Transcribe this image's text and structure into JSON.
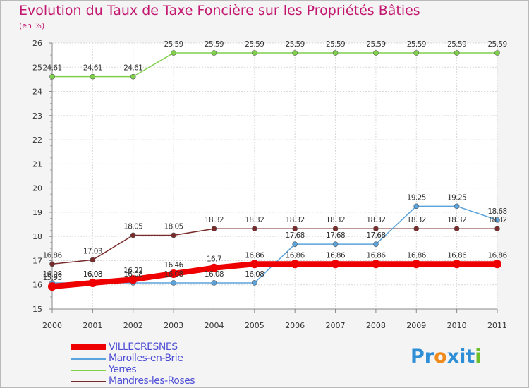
{
  "title": "Evolution du Taux de Taxe Foncière sur les Propriétés Bâties",
  "unit_label": "(en %)",
  "logo": {
    "letters": [
      "P",
      "r",
      "o",
      "x",
      "i",
      "t",
      "i"
    ],
    "colors": [
      "#2f8fd6",
      "#2f8fd6",
      "#ef8a1d",
      "#2f8fd6",
      "#2f8fd6",
      "#2f8fd6",
      "#6fbf2a"
    ]
  },
  "chart_data": {
    "type": "line",
    "title": "Evolution du Taux de Taxe Foncière sur les Propriétés Bâties",
    "ylabel": "(en %)",
    "xlabel": "",
    "x": [
      "2000",
      "2001",
      "2002",
      "2003",
      "2004",
      "2005",
      "2006",
      "2007",
      "2008",
      "2009",
      "2010",
      "2011"
    ],
    "ylim": [
      15,
      26
    ],
    "yticks": [
      "15",
      "16",
      "17",
      "18",
      "19",
      "20",
      "21",
      "22",
      "23",
      "24",
      "25",
      "26"
    ],
    "grid": true,
    "legend_position": "bottom-left",
    "series": [
      {
        "name": "VILLECRESNES",
        "color": "#ee0000",
        "values": [
          15.93,
          16.08,
          16.22,
          16.46,
          16.7,
          16.86,
          16.86,
          16.86,
          16.86,
          16.86,
          16.86,
          16.86
        ],
        "labels": [
          "15.93",
          "16.08",
          "16.22",
          "16.46",
          "16.7",
          "16.86",
          "16.86",
          "16.86",
          "16.86",
          "16.86",
          "16.86",
          "16.86"
        ]
      },
      {
        "name": "Marolles-en-Brie",
        "color": "#5ba3dc",
        "values": [
          16.08,
          16.08,
          16.08,
          16.08,
          16.08,
          16.08,
          17.68,
          17.68,
          17.68,
          19.25,
          19.25,
          18.68
        ],
        "labels": [
          "16.08",
          "16.08",
          "16.08",
          "16.08",
          "16.08",
          "16.08",
          "17.68",
          "17.68",
          "17.68",
          "19.25",
          "19.25",
          "18.68"
        ]
      },
      {
        "name": "Yerres",
        "color": "#7fd04a",
        "values": [
          24.61,
          24.61,
          24.61,
          25.59,
          25.59,
          25.59,
          25.59,
          25.59,
          25.59,
          25.59,
          25.59,
          25.59
        ],
        "labels": [
          "24.61",
          "24.61",
          "24.61",
          "25.59",
          "25.59",
          "25.59",
          "25.59",
          "25.59",
          "25.59",
          "25.59",
          "25.59",
          "25.59"
        ]
      },
      {
        "name": "Mandres-les-Roses",
        "color": "#7a2c2c",
        "values": [
          16.86,
          17.03,
          18.05,
          18.05,
          18.32,
          18.32,
          18.32,
          18.32,
          18.32,
          18.32,
          18.32,
          18.32
        ],
        "labels": [
          "16.86",
          "17.03",
          "18.05",
          "18.05",
          "18.32",
          "18.32",
          "18.32",
          "18.32",
          "18.32",
          "18.32",
          "18.32",
          "18.32"
        ]
      }
    ]
  }
}
